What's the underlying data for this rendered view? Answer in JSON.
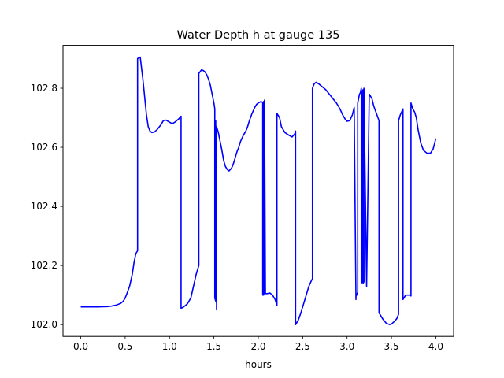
{
  "chart_data": {
    "type": "line",
    "title": "Water Depth h at gauge 135",
    "xlabel": "hours",
    "ylabel": "",
    "xlim": [
      -0.2,
      4.2
    ],
    "ylim": [
      101.96,
      102.945
    ],
    "xticks": [
      0.0,
      0.5,
      1.0,
      1.5,
      2.0,
      2.5,
      3.0,
      3.5,
      4.0
    ],
    "xtick_labels": [
      "0.0",
      "0.5",
      "1.0",
      "1.5",
      "2.0",
      "2.5",
      "3.0",
      "3.5",
      "4.0"
    ],
    "yticks": [
      102.0,
      102.2,
      102.4,
      102.6,
      102.8
    ],
    "ytick_labels": [
      "102.0",
      "102.2",
      "102.4",
      "102.6",
      "102.8"
    ],
    "grid": false,
    "legend": "none",
    "series": [
      {
        "color": "#0000ff",
        "x": [
          0.0,
          0.1,
          0.2,
          0.3,
          0.35,
          0.4,
          0.45,
          0.48,
          0.5,
          0.52,
          0.55,
          0.58,
          0.6,
          0.62,
          0.64,
          0.64,
          0.67,
          0.68,
          0.7,
          0.72,
          0.74,
          0.76,
          0.78,
          0.8,
          0.83,
          0.86,
          0.9,
          0.93,
          0.96,
          1.0,
          1.03,
          1.06,
          1.1,
          1.13,
          1.13,
          1.16,
          1.2,
          1.24,
          1.27,
          1.3,
          1.33,
          1.33,
          1.36,
          1.38,
          1.4,
          1.42,
          1.44,
          1.46,
          1.48,
          1.5,
          1.51,
          1.51,
          1.52,
          1.52,
          1.53,
          1.53,
          1.55,
          1.57,
          1.59,
          1.61,
          1.63,
          1.65,
          1.67,
          1.7,
          1.72,
          1.74,
          1.76,
          1.78,
          1.8,
          1.83,
          1.86,
          1.88,
          1.9,
          1.93,
          1.96,
          1.98,
          2.0,
          2.03,
          2.05,
          2.05,
          2.06,
          2.06,
          2.07,
          2.07,
          2.08,
          2.1,
          2.13,
          2.16,
          2.19,
          2.21,
          2.21,
          2.24,
          2.26,
          2.3,
          2.35,
          2.38,
          2.41,
          2.42,
          2.42,
          2.45,
          2.48,
          2.51,
          2.54,
          2.57,
          2.6,
          2.61,
          2.61,
          2.63,
          2.65,
          2.68,
          2.72,
          2.76,
          2.8,
          2.84,
          2.88,
          2.92,
          2.95,
          2.98,
          3.0,
          3.03,
          3.06,
          3.08,
          3.1,
          3.1,
          3.12,
          3.12,
          3.14,
          3.15,
          3.16,
          3.16,
          3.17,
          3.17,
          3.18,
          3.18,
          3.19,
          3.19,
          3.22,
          3.22,
          3.25,
          3.28,
          3.3,
          3.33,
          3.36,
          3.36,
          3.4,
          3.44,
          3.48,
          3.5,
          3.53,
          3.56,
          3.58,
          3.58,
          3.6,
          3.63,
          3.63,
          3.66,
          3.7,
          3.72,
          3.72,
          3.74,
          3.76,
          3.78,
          3.8,
          3.83,
          3.86,
          3.9,
          3.94,
          3.97,
          4.0
        ],
        "y": [
          102.06,
          102.06,
          102.06,
          102.061,
          102.063,
          102.066,
          102.072,
          102.08,
          102.09,
          102.105,
          102.13,
          102.17,
          102.21,
          102.24,
          102.25,
          102.9,
          102.905,
          102.88,
          102.83,
          102.77,
          102.71,
          102.67,
          102.655,
          102.65,
          102.652,
          102.66,
          102.675,
          102.69,
          102.692,
          102.685,
          102.68,
          102.685,
          102.695,
          102.705,
          102.055,
          102.06,
          102.07,
          102.09,
          102.13,
          102.17,
          102.2,
          102.85,
          102.862,
          102.86,
          102.855,
          102.845,
          102.83,
          102.81,
          102.78,
          102.75,
          102.73,
          102.09,
          102.08,
          102.69,
          102.05,
          102.67,
          102.65,
          102.62,
          102.59,
          102.555,
          102.535,
          102.525,
          102.52,
          102.53,
          102.545,
          102.565,
          102.585,
          102.6,
          102.62,
          102.64,
          102.655,
          102.67,
          102.69,
          102.715,
          102.735,
          102.745,
          102.75,
          102.755,
          102.752,
          102.1,
          102.1,
          102.755,
          102.105,
          102.76,
          102.105,
          102.105,
          102.107,
          102.1,
          102.085,
          102.065,
          102.715,
          102.7,
          102.67,
          102.65,
          102.64,
          102.635,
          102.645,
          102.655,
          102.0,
          102.015,
          102.04,
          102.07,
          102.1,
          102.13,
          102.15,
          102.155,
          102.8,
          102.815,
          102.82,
          102.815,
          102.805,
          102.795,
          102.78,
          102.765,
          102.75,
          102.73,
          102.71,
          102.695,
          102.688,
          102.69,
          102.71,
          102.735,
          102.085,
          102.095,
          102.11,
          102.75,
          102.78,
          102.785,
          102.8,
          102.14,
          102.145,
          102.79,
          102.795,
          102.14,
          102.145,
          102.8,
          102.13,
          102.13,
          102.78,
          102.765,
          102.74,
          102.715,
          102.69,
          102.04,
          102.02,
          102.005,
          102.0,
          102.002,
          102.01,
          102.02,
          102.035,
          102.69,
          102.71,
          102.73,
          102.085,
          102.1,
          102.1,
          102.097,
          102.75,
          102.73,
          102.72,
          102.7,
          102.66,
          102.615,
          102.59,
          102.58,
          102.58,
          102.595,
          102.63
        ]
      }
    ]
  }
}
